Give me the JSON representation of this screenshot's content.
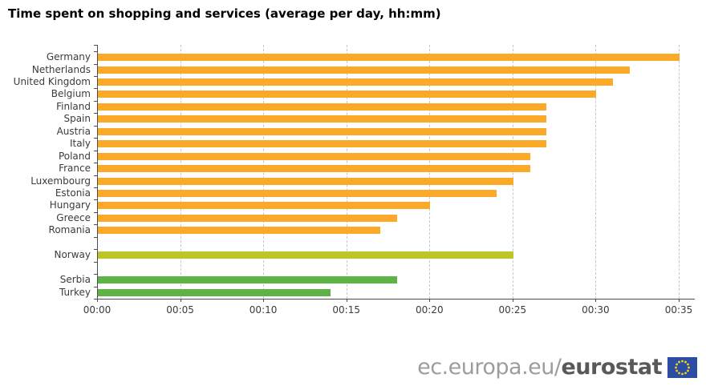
{
  "title": "Time spent on shopping and services (average per day, hh:mm)",
  "footer": {
    "url_prefix": "ec.europa.eu/",
    "url_bold": "eurostat"
  },
  "colors": {
    "eu_bar": "#FAA928",
    "norway_bar": "#BEC526",
    "candidate_bar": "#5FB245",
    "gridline": "#c6c6c6",
    "axis": "#4d4d4d",
    "flag_blue": "#2B4EA2",
    "flag_stars": "#F5D11C"
  },
  "chart_data": {
    "type": "bar",
    "orientation": "horizontal",
    "title": "Time spent on shopping and services (average per day, hh:mm)",
    "xlabel": "",
    "ylabel": "",
    "unit": "hh:mm",
    "grid": "dashed-vertical",
    "legend": "none",
    "x_axis": {
      "ticks": [
        "00:00",
        "00:05",
        "00:10",
        "00:15",
        "00:20",
        "00:25",
        "00:30",
        "00:35"
      ],
      "min_minutes": 0,
      "max_minutes": 35,
      "tick_step_minutes": 5
    },
    "groups": [
      {
        "color": "#FAA928",
        "bars": [
          {
            "label": "Germany",
            "value": "00:35",
            "minutes": 35
          },
          {
            "label": "Netherlands",
            "value": "00:32",
            "minutes": 32
          },
          {
            "label": "United Kingdom",
            "value": "00:31",
            "minutes": 31
          },
          {
            "label": "Belgium",
            "value": "00:30",
            "minutes": 30
          },
          {
            "label": "Finland",
            "value": "00:27",
            "minutes": 27
          },
          {
            "label": "Spain",
            "value": "00:27",
            "minutes": 27
          },
          {
            "label": "Austria",
            "value": "00:27",
            "minutes": 27
          },
          {
            "label": "Italy",
            "value": "00:27",
            "minutes": 27
          },
          {
            "label": "Poland",
            "value": "00:26",
            "minutes": 26
          },
          {
            "label": "France",
            "value": "00:26",
            "minutes": 26
          },
          {
            "label": "Luxembourg",
            "value": "00:25",
            "minutes": 25
          },
          {
            "label": "Estonia",
            "value": "00:24",
            "minutes": 24
          },
          {
            "label": "Hungary",
            "value": "00:20",
            "minutes": 20
          },
          {
            "label": "Greece",
            "value": "00:18",
            "minutes": 18
          },
          {
            "label": "Romania",
            "value": "00:17",
            "minutes": 17
          }
        ]
      },
      {
        "color": "#BEC526",
        "bars": [
          {
            "label": "Norway",
            "value": "00:25",
            "minutes": 25
          }
        ]
      },
      {
        "color": "#5FB245",
        "bars": [
          {
            "label": "Serbia",
            "value": "00:18",
            "minutes": 18
          },
          {
            "label": "Turkey",
            "value": "00:14",
            "minutes": 14
          }
        ]
      }
    ]
  }
}
